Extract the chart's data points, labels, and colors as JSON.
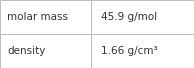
{
  "rows": [
    {
      "label": "molar mass",
      "value": "45.9 g/mol"
    },
    {
      "label": "density",
      "value": "1.66 g/cm³"
    }
  ],
  "background_color": "#ffffff",
  "border_color": "#bbbbbb",
  "text_color": "#333333",
  "fontsize": 7.5,
  "col_split": 0.47,
  "fig_width": 1.94,
  "fig_height": 0.68,
  "dpi": 100
}
